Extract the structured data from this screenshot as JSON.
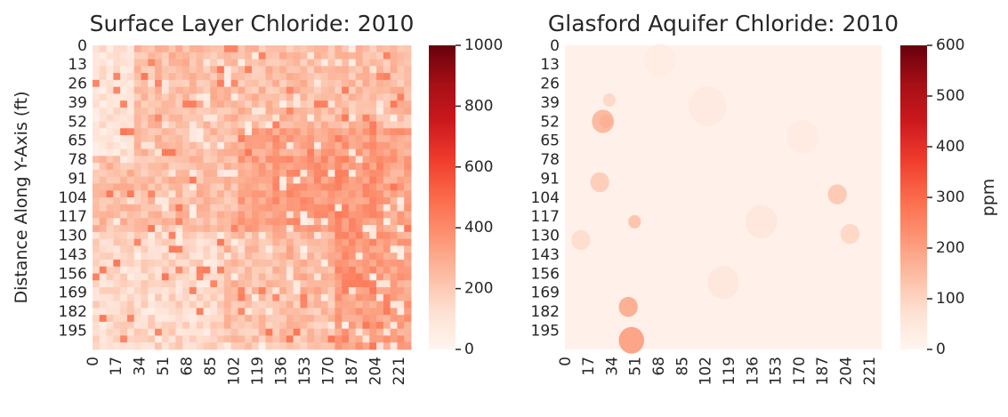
{
  "chart_data": [
    {
      "type": "heatmap",
      "title": "Surface Layer Chloride: 2010",
      "xlabel": "",
      "ylabel": "Distance Along Y-Axis (ft)",
      "x_ticks": [
        "0",
        "17",
        "34",
        "51",
        "68",
        "85",
        "102",
        "119",
        "136",
        "153",
        "170",
        "187",
        "204",
        "221"
      ],
      "y_ticks": [
        "0",
        "13",
        "26",
        "39",
        "52",
        "65",
        "78",
        "91",
        "104",
        "117",
        "130",
        "143",
        "156",
        "169",
        "182",
        "195"
      ],
      "x_range": [
        0,
        230
      ],
      "y_range": [
        0,
        208
      ],
      "colormap": "Reds",
      "colorbar": {
        "label": "",
        "range": [
          0,
          1000
        ],
        "ticks": [
          "0",
          "200",
          "400",
          "600",
          "800",
          "1000"
        ]
      },
      "typical_value": 300,
      "value_range_observed": [
        0,
        450
      ]
    },
    {
      "type": "heatmap",
      "title": "Glasford Aquifer Chloride: 2010",
      "xlabel": "",
      "ylabel": "",
      "x_ticks": [
        "0",
        "17",
        "34",
        "51",
        "68",
        "85",
        "102",
        "119",
        "136",
        "153",
        "170",
        "187",
        "204",
        "221"
      ],
      "y_ticks": [
        "0",
        "13",
        "26",
        "39",
        "52",
        "65",
        "78",
        "91",
        "104",
        "117",
        "130",
        "143",
        "156",
        "169",
        "182",
        "195"
      ],
      "x_range": [
        0,
        230
      ],
      "y_range": [
        0,
        208
      ],
      "colormap": "Reds",
      "colorbar": {
        "label": "ppm",
        "range": [
          0,
          600
        ],
        "ticks": [
          "0",
          "100",
          "200",
          "300",
          "400",
          "500",
          "600"
        ]
      },
      "typical_value": 15,
      "value_range_observed": [
        0,
        200
      ]
    }
  ],
  "colors": {
    "reds_low": "#fff5f0",
    "reds_mid": "#fb6a4a",
    "reds_high": "#67000d",
    "text": "#262626"
  }
}
